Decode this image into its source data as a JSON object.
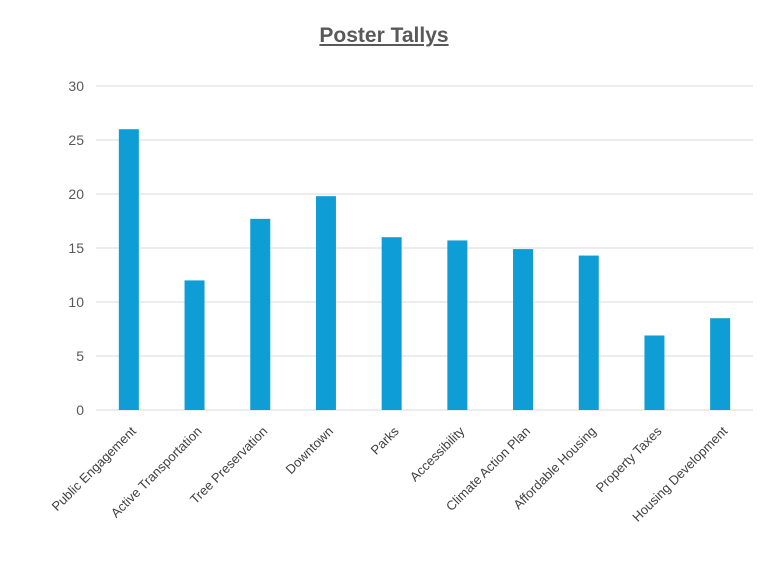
{
  "chart_data": {
    "type": "bar",
    "title": "Poster Tallys",
    "categories": [
      "Public Engagement",
      "Active Transportation",
      "Tree Preservation",
      "Downtown",
      "Parks",
      "Accessibility",
      "Climate Action Plan",
      "Affordable Housing",
      "Property Taxes",
      "Housing Development"
    ],
    "values": [
      26,
      12,
      17.7,
      19.8,
      16,
      15.7,
      14.9,
      14.3,
      6.9,
      8.5
    ],
    "ylim": [
      0,
      30
    ],
    "yticks": [
      0,
      5,
      10,
      15,
      20,
      25,
      30
    ],
    "grid": true,
    "legend": "none",
    "bar_color": "#0e9ed5",
    "grid_color": "#d9d9d9"
  }
}
